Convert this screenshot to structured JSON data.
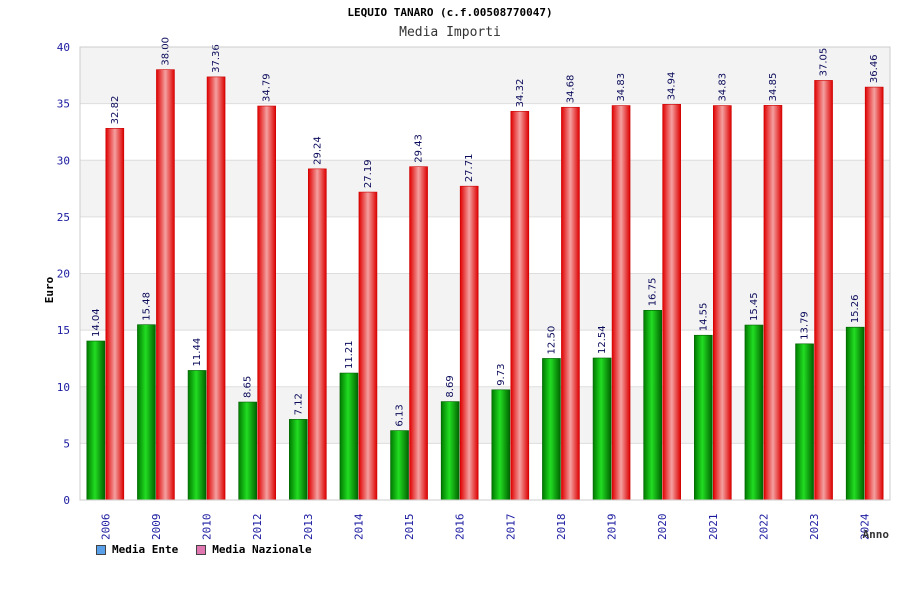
{
  "chart_data": {
    "type": "bar",
    "title": "LEQUIO TANARO (c.f.00508770047)",
    "subtitle": "Media Importi",
    "ylabel": "Euro",
    "xlabel": "Anno",
    "ylim": [
      0,
      40
    ],
    "yticks": [
      0,
      5,
      10,
      15,
      20,
      25,
      30,
      35,
      40
    ],
    "categories": [
      "2006",
      "2009",
      "2010",
      "2012",
      "2013",
      "2014",
      "2015",
      "2016",
      "2017",
      "2018",
      "2019",
      "2020",
      "2021",
      "2022",
      "2023",
      "2024"
    ],
    "series": [
      {
        "name": "Media Ente",
        "color": "#00b000",
        "legend_color": "#5aa0e8",
        "values": [
          14.04,
          15.48,
          11.44,
          8.65,
          7.12,
          11.21,
          6.13,
          8.69,
          9.73,
          12.5,
          12.54,
          16.75,
          14.55,
          15.45,
          13.79,
          15.26
        ],
        "labels": [
          "14.04",
          "15.48",
          "11.44",
          "8.65",
          "7.12",
          "11.21",
          "6.13",
          "8.69",
          "9.73",
          "12.50",
          "12.54",
          "16.75",
          "14.55",
          "15.45",
          "13.79",
          "15.26"
        ]
      },
      {
        "name": "Media Nazionale",
        "color": "#ee1111",
        "legend_color": "#e077b0",
        "values": [
          32.82,
          38.0,
          37.36,
          34.79,
          29.24,
          27.19,
          29.43,
          27.71,
          34.32,
          34.68,
          34.83,
          34.94,
          34.83,
          34.85,
          37.05,
          36.46
        ],
        "labels": [
          "32.82",
          "38.00",
          "37.36",
          "34.79",
          "29.24",
          "27.19",
          "29.43",
          "27.71",
          "34.32",
          "34.68",
          "34.83",
          "34.94",
          "34.83",
          "34.85",
          "37.05",
          "36.46"
        ]
      }
    ],
    "grid": true,
    "legend": "bottom-left"
  }
}
